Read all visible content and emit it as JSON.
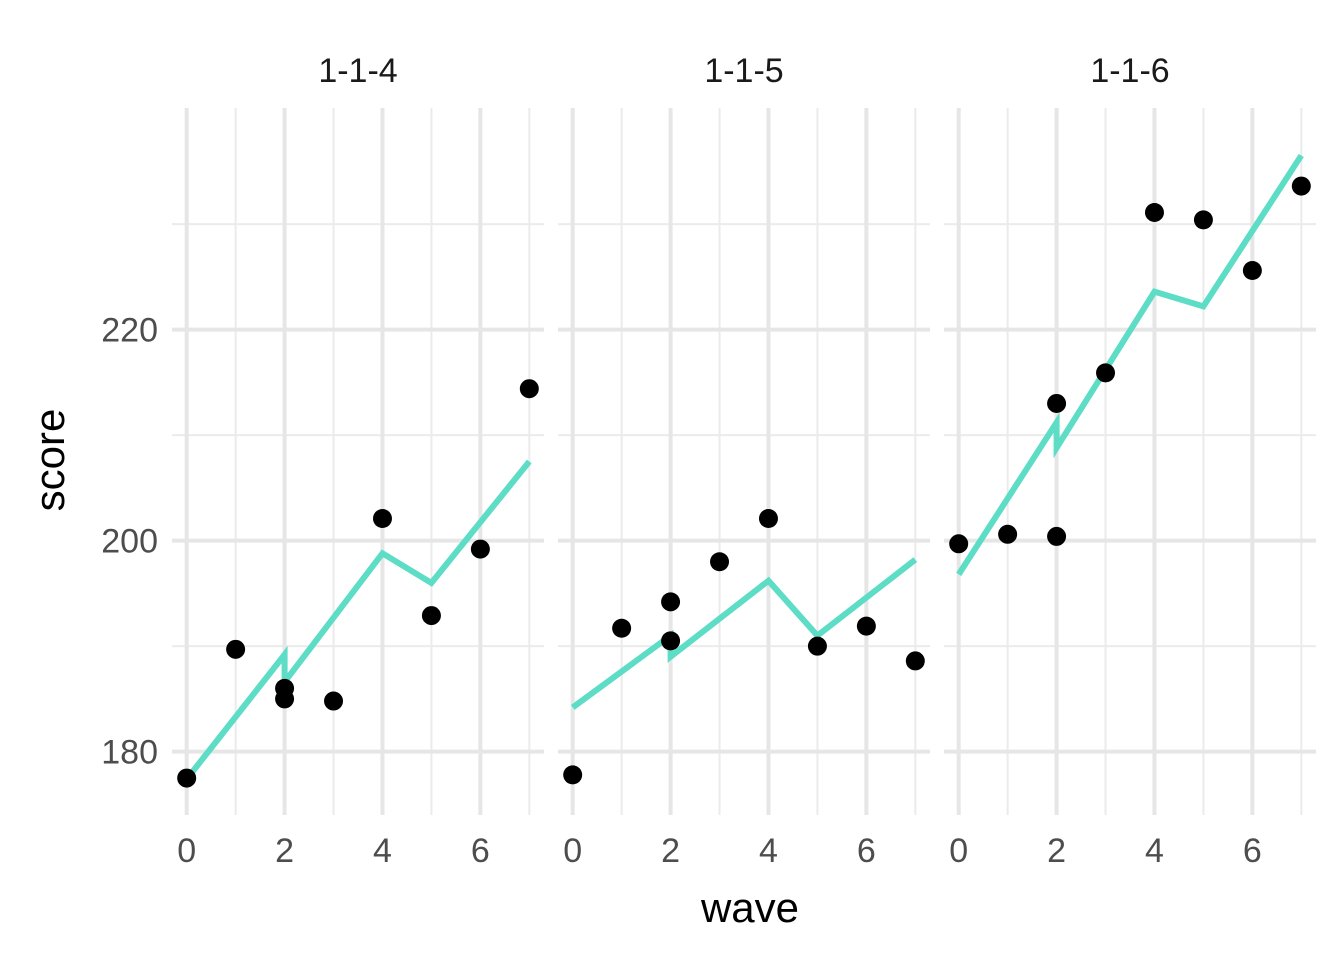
{
  "chart_data": {
    "type": "scatter",
    "xlabel": "wave",
    "ylabel": "score",
    "x_ticks": [
      0,
      2,
      4,
      6
    ],
    "y_ticks": [
      180,
      200,
      220
    ],
    "xlim": [
      -0.3,
      7.3
    ],
    "ylim": [
      174,
      241
    ],
    "grid": true,
    "line_color": "#5ddcc6",
    "point_color": "#000000",
    "panels": [
      {
        "title": "1-1-4",
        "points": [
          {
            "x": 0,
            "y": 177.5
          },
          {
            "x": 1,
            "y": 189.7
          },
          {
            "x": 2,
            "y": 186.0
          },
          {
            "x": 2,
            "y": 185.0
          },
          {
            "x": 3,
            "y": 184.8
          },
          {
            "x": 4,
            "y": 202.1
          },
          {
            "x": 5,
            "y": 192.9
          },
          {
            "x": 6,
            "y": 199.2
          },
          {
            "x": 7,
            "y": 214.4
          }
        ],
        "fitted": [
          {
            "x": 0,
            "y": 177.4
          },
          {
            "x": 2,
            "y": 189.2
          },
          {
            "x": 2,
            "y": 186.6
          },
          {
            "x": 4,
            "y": 198.8
          },
          {
            "x": 5,
            "y": 196.0
          },
          {
            "x": 7,
            "y": 207.5
          }
        ]
      },
      {
        "title": "1-1-5",
        "points": [
          {
            "x": 0,
            "y": 177.8
          },
          {
            "x": 1,
            "y": 191.7
          },
          {
            "x": 2,
            "y": 194.2
          },
          {
            "x": 2,
            "y": 190.5
          },
          {
            "x": 3,
            "y": 198.0
          },
          {
            "x": 4,
            "y": 202.1
          },
          {
            "x": 5,
            "y": 190.0
          },
          {
            "x": 6,
            "y": 191.9
          },
          {
            "x": 7,
            "y": 188.6
          }
        ],
        "fitted": [
          {
            "x": 0,
            "y": 184.2
          },
          {
            "x": 2,
            "y": 191.0
          },
          {
            "x": 2,
            "y": 189.0
          },
          {
            "x": 4,
            "y": 196.2
          },
          {
            "x": 5,
            "y": 191.0
          },
          {
            "x": 7,
            "y": 198.2
          }
        ]
      },
      {
        "title": "1-1-6",
        "points": [
          {
            "x": 0,
            "y": 199.7
          },
          {
            "x": 1,
            "y": 200.6
          },
          {
            "x": 2,
            "y": 213.0
          },
          {
            "x": 2,
            "y": 200.4
          },
          {
            "x": 3,
            "y": 215.9
          },
          {
            "x": 4,
            "y": 231.1
          },
          {
            "x": 5,
            "y": 230.4
          },
          {
            "x": 6,
            "y": 225.6
          },
          {
            "x": 7,
            "y": 233.6
          }
        ],
        "fitted": [
          {
            "x": 0,
            "y": 196.8
          },
          {
            "x": 2,
            "y": 211.2
          },
          {
            "x": 2,
            "y": 208.8
          },
          {
            "x": 4,
            "y": 223.6
          },
          {
            "x": 5,
            "y": 222.2
          },
          {
            "x": 7,
            "y": 236.5
          }
        ]
      }
    ]
  }
}
